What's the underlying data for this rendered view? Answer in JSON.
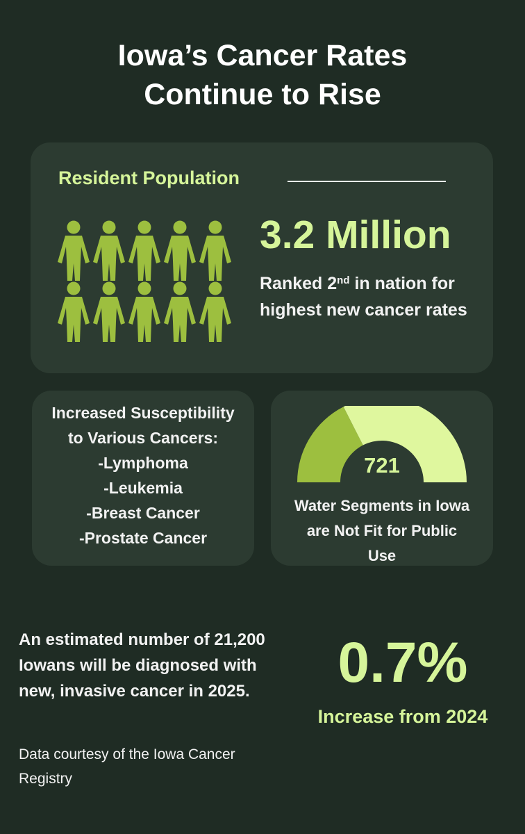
{
  "title": {
    "line1": "Iowa’s Cancer Rates",
    "line2": "Continue to Rise"
  },
  "population_card": {
    "heading": "Resident Population",
    "value": "3.2 Million",
    "rank_prefix": "Ranked 2",
    "rank_superscript": "nd",
    "rank_suffix": " in nation for highest new cancer rates",
    "people_icon": "person-icon",
    "people_count": 10,
    "icon_color": "#9dbf3f"
  },
  "susceptibility_card": {
    "lines": [
      "Increased Susceptibility",
      "to Various Cancers:",
      "-Lymphoma",
      "-Leukemia",
      "-Breast Cancer",
      "-Prostate Cancer"
    ]
  },
  "water_card": {
    "value": "721",
    "description": "Water Segments in Iowa are Not Fit for Public Use",
    "gauge_fill_fraction": 0.35,
    "gauge_dark_color": "#9dbf3f",
    "gauge_light_color": "#dff79e"
  },
  "estimate": {
    "text": "An estimated number of 21,200 Iowans will be diagnosed with new, invasive cancer in 2025.",
    "credit": "Data courtesy of the Iowa Cancer Registry"
  },
  "increase": {
    "value": "0.7%",
    "label": "Increase from 2024"
  },
  "colors": {
    "background": "#1f2c24",
    "card": "#2c3b31",
    "accent": "#d6f59a"
  }
}
